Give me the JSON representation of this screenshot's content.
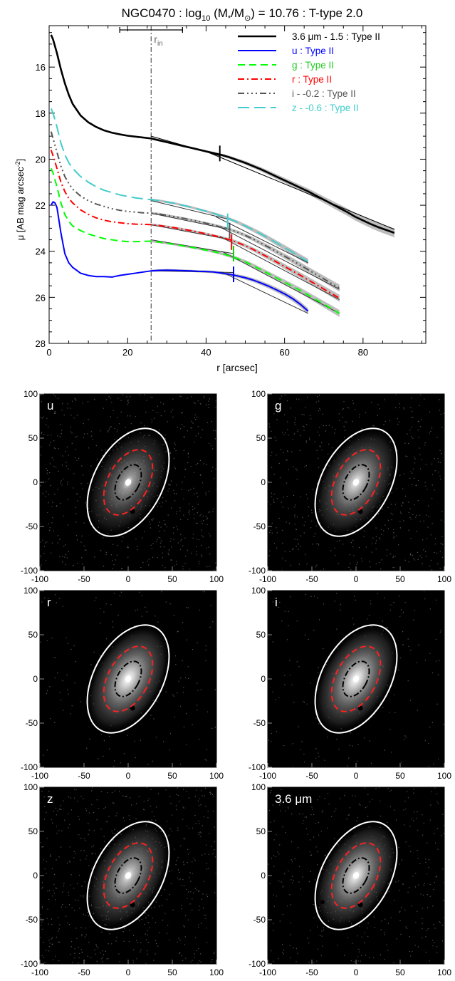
{
  "chart_data": [
    {
      "type": "line",
      "title_parts": {
        "galaxy": "NGC0470 : log",
        "log_sub": "10",
        "mass": " (M",
        "star": "*",
        "slash": "/M",
        "sun": "⊙",
        "rest": ") = 10.76 : T-type 2.0"
      },
      "xlabel": "r [arcsec]",
      "ylabel_parts": {
        "main": "μ [AB mag arcsec",
        "sup": "-2",
        "close": "]"
      },
      "xlim": [
        0,
        96
      ],
      "ylim": [
        28,
        14.2
      ],
      "y_inverted": true,
      "xticks": [
        0,
        20,
        40,
        60,
        80
      ],
      "yticks": [
        16,
        18,
        20,
        22,
        24,
        26,
        28
      ],
      "r_in": {
        "value": 26,
        "label": "r",
        "label_sub": "in",
        "errbar": [
          18,
          34
        ]
      },
      "legend_position": "top-right",
      "legend": [
        {
          "label": "3.6 μm - 1.5 : Type II",
          "color": "#000000"
        },
        {
          "label": "u : Type II",
          "color": "#0000ff"
        },
        {
          "label": "g : Type II",
          "color": "#00ff00"
        },
        {
          "label": "r : Type II",
          "color": "#ff0000"
        },
        {
          "label": "i - -0.2 : Type II",
          "color": "#555555"
        },
        {
          "label": "z - -0.6 : Type II",
          "color": "#44cccc"
        }
      ],
      "series": [
        {
          "name": "3.6 μm - 1.5 : Type II",
          "color": "#000000",
          "dash": "",
          "width": 2.6,
          "x": [
            0.5,
            1,
            2,
            3,
            4,
            5,
            6,
            8,
            10,
            12,
            14,
            16,
            18,
            20,
            22,
            24,
            26,
            28,
            30,
            32,
            34,
            36,
            38,
            40,
            42,
            44,
            46,
            48,
            50,
            52,
            54,
            56,
            58,
            60,
            62,
            64,
            66,
            68,
            70,
            72,
            74,
            76,
            78,
            80,
            82,
            84,
            86,
            88
          ],
          "y": [
            14.6,
            14.8,
            15.4,
            16.1,
            16.7,
            17.2,
            17.6,
            18.1,
            18.4,
            18.6,
            18.75,
            18.85,
            18.92,
            18.98,
            19.02,
            19.06,
            19.1,
            19.18,
            19.26,
            19.34,
            19.42,
            19.5,
            19.58,
            19.66,
            19.74,
            19.82,
            19.92,
            20.04,
            20.16,
            20.3,
            20.44,
            20.6,
            20.76,
            20.92,
            21.08,
            21.24,
            21.4,
            21.58,
            21.76,
            21.94,
            22.12,
            22.3,
            22.5,
            22.66,
            22.82,
            22.96,
            23.08,
            23.2
          ],
          "break_r": 43.5,
          "break_mu": 19.75,
          "fit_in": [
            19.0,
            19.85
          ],
          "fit_out": [
            19.7,
            23.05
          ],
          "fit_range": [
            26,
            88
          ]
        },
        {
          "name": "u : Type II",
          "color": "#0000ff",
          "dash": "",
          "width": 2,
          "x": [
            0.5,
            1,
            1.5,
            2,
            3,
            4,
            5,
            6,
            8,
            10,
            12,
            14,
            16,
            18,
            20,
            22,
            24,
            26,
            28,
            30,
            32,
            34,
            36,
            38,
            40,
            42,
            44,
            46,
            48,
            50,
            52,
            54,
            56,
            58,
            60,
            62,
            64,
            66
          ],
          "y": [
            22.0,
            21.85,
            21.9,
            22.1,
            23.2,
            24.1,
            24.5,
            24.7,
            24.95,
            25.05,
            25.1,
            25.1,
            25.12,
            25.05,
            25.0,
            24.95,
            24.9,
            24.85,
            24.83,
            24.82,
            24.83,
            24.84,
            24.85,
            24.87,
            24.88,
            24.9,
            24.95,
            25.0,
            25.07,
            25.15,
            25.25,
            25.38,
            25.52,
            25.68,
            25.85,
            26.05,
            26.3,
            26.6
          ],
          "break_r": 47,
          "break_mu": 25.0,
          "fit_in": [
            24.85,
            24.92
          ],
          "fit_out": [
            24.9,
            26.7
          ],
          "fit_range": [
            26,
            66
          ]
        },
        {
          "name": "g : Type II",
          "color": "#00ff00",
          "dash": "10,6",
          "width": 2,
          "x": [
            0.5,
            1,
            2,
            3,
            4,
            5,
            6,
            8,
            10,
            12,
            14,
            16,
            18,
            20,
            22,
            24,
            26,
            28,
            30,
            32,
            34,
            36,
            38,
            40,
            42,
            44,
            46,
            48,
            50,
            52,
            54,
            56,
            58,
            60,
            62,
            64,
            66,
            68,
            70,
            72,
            74
          ],
          "y": [
            20.4,
            20.6,
            21.2,
            21.9,
            22.4,
            22.7,
            22.9,
            23.1,
            23.25,
            23.35,
            23.45,
            23.5,
            23.55,
            23.58,
            23.58,
            23.57,
            23.56,
            23.6,
            23.65,
            23.7,
            23.76,
            23.82,
            23.88,
            23.95,
            24.02,
            24.1,
            24.2,
            24.32,
            24.46,
            24.62,
            24.8,
            24.98,
            25.16,
            25.34,
            25.52,
            25.7,
            25.9,
            26.1,
            26.3,
            26.5,
            26.7
          ],
          "break_r": 47,
          "break_mu": 24.1,
          "fit_in": [
            23.5,
            24.1
          ],
          "fit_out": [
            24.0,
            26.7
          ],
          "fit_range": [
            26,
            74
          ]
        },
        {
          "name": "r : Type II",
          "color": "#ff0000",
          "dash": "9,4,2,4",
          "width": 2,
          "x": [
            0.5,
            1,
            2,
            3,
            4,
            5,
            6,
            8,
            10,
            12,
            14,
            16,
            18,
            20,
            22,
            24,
            26,
            28,
            30,
            32,
            34,
            36,
            38,
            40,
            42,
            44,
            46,
            48,
            50,
            52,
            54,
            56,
            58,
            60,
            62,
            64,
            66,
            68,
            70,
            72,
            74
          ],
          "y": [
            19.6,
            19.85,
            20.4,
            21.0,
            21.4,
            21.7,
            21.9,
            22.2,
            22.4,
            22.55,
            22.65,
            22.72,
            22.76,
            22.8,
            22.82,
            22.83,
            22.84,
            22.88,
            22.93,
            22.98,
            23.04,
            23.1,
            23.17,
            23.24,
            23.32,
            23.4,
            23.5,
            23.62,
            23.76,
            23.92,
            24.1,
            24.28,
            24.47,
            24.66,
            24.85,
            25.04,
            25.24,
            25.44,
            25.64,
            25.84,
            26.04
          ],
          "break_r": 46.5,
          "break_mu": 23.6,
          "fit_in": [
            22.85,
            23.5
          ],
          "fit_out": [
            23.35,
            26.1
          ],
          "fit_range": [
            26,
            74
          ]
        },
        {
          "name": "i - -0.2 : Type II",
          "color": "#555555",
          "dash": "9,4,2,4,2,4,2,4",
          "width": 2,
          "x": [
            0.5,
            1,
            2,
            3,
            4,
            5,
            6,
            8,
            10,
            12,
            14,
            16,
            18,
            20,
            22,
            24,
            26,
            28,
            30,
            32,
            34,
            36,
            38,
            40,
            42,
            44,
            46,
            48,
            50,
            52,
            54,
            56,
            58,
            60,
            62,
            64,
            66,
            68,
            70,
            72,
            74
          ],
          "y": [
            18.8,
            19.1,
            19.7,
            20.3,
            20.75,
            21.05,
            21.3,
            21.6,
            21.8,
            21.95,
            22.05,
            22.15,
            22.22,
            22.27,
            22.3,
            22.33,
            22.34,
            22.38,
            22.44,
            22.5,
            22.56,
            22.63,
            22.7,
            22.78,
            22.86,
            22.95,
            23.05,
            23.17,
            23.31,
            23.47,
            23.65,
            23.83,
            24.02,
            24.21,
            24.4,
            24.6,
            24.8,
            25.0,
            25.2,
            25.4,
            25.6
          ],
          "break_r": 46,
          "break_mu": 23.1,
          "fit_in": [
            22.35,
            23.05
          ],
          "fit_out": [
            22.9,
            25.65
          ],
          "fit_range": [
            26,
            74
          ]
        },
        {
          "name": "z - -0.6 : Type II",
          "color": "#44cccc",
          "dash": "16,7",
          "width": 2,
          "x": [
            0.5,
            1,
            2,
            3,
            4,
            5,
            6,
            8,
            10,
            12,
            14,
            16,
            18,
            20,
            22,
            24,
            26,
            28,
            30,
            32,
            34,
            36,
            38,
            40,
            42,
            44,
            46,
            48,
            50,
            52,
            54,
            56,
            58,
            60,
            62,
            64,
            66
          ],
          "y": [
            17.8,
            18.0,
            18.6,
            19.3,
            19.8,
            20.15,
            20.4,
            20.75,
            21.0,
            21.2,
            21.35,
            21.45,
            21.55,
            21.62,
            21.68,
            21.72,
            21.76,
            21.8,
            21.86,
            21.92,
            22.0,
            22.08,
            22.17,
            22.26,
            22.36,
            22.47,
            22.6,
            22.74,
            22.9,
            23.07,
            23.25,
            23.44,
            23.64,
            23.84,
            24.04,
            24.25,
            24.45
          ],
          "break_r": 45.5,
          "break_mu": 22.7,
          "fit_in": [
            21.8,
            22.6
          ],
          "fit_out": [
            22.5,
            24.5
          ],
          "fit_range": [
            26,
            66
          ]
        }
      ]
    },
    {
      "type": "image-panels",
      "xlim": [
        -100,
        100
      ],
      "ylim": [
        -100,
        100
      ],
      "ticks": [
        -100,
        -50,
        0,
        50,
        100
      ],
      "tick_labels": [
        "-100",
        "-50",
        "0",
        "50",
        "100"
      ],
      "tick_labels_x_hidden_last": "100",
      "panels": [
        {
          "label": "u",
          "noise": 0.55,
          "glow": 0.7
        },
        {
          "label": "g",
          "noise": 0.45,
          "glow": 0.9
        },
        {
          "label": "r",
          "noise": 0.15,
          "glow": 1.0
        },
        {
          "label": "i",
          "noise": 0.15,
          "glow": 1.0
        },
        {
          "label": "z",
          "noise": 0.55,
          "glow": 0.85
        },
        {
          "label": "3.6 μm",
          "noise": 0.35,
          "glow": 0.95
        }
      ],
      "ellipse_colors": {
        "outer": "#ffffff",
        "mid": "#ff2020",
        "inner": "#000000"
      }
    }
  ]
}
